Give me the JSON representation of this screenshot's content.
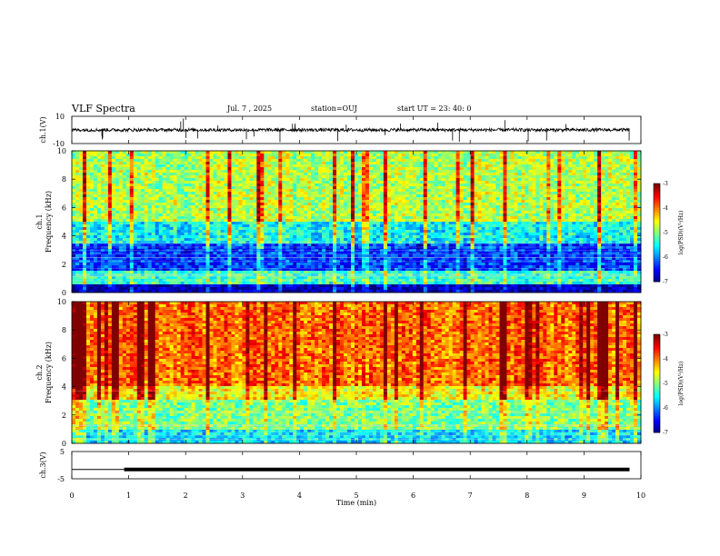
{
  "header": {
    "title": "VLF Spectra",
    "date": "Jul. 7 , 2025",
    "station": "station=OUJ",
    "start": "start UT = 23: 40: 0"
  },
  "chart_data": [
    {
      "type": "line",
      "name": "ch1-waveform",
      "ylabel": "ch.1(V)",
      "ylim": [
        -10,
        10
      ],
      "yticklabels": [
        "10",
        "-10"
      ],
      "xlim": [
        0,
        10
      ],
      "description_values": {
        "baseline_v": 0,
        "typical_amplitude_v": 1.2,
        "spike_amplitude_v": 9
      }
    },
    {
      "type": "heatmap",
      "name": "ch1-spectrogram",
      "ylabel": "ch.1\nFrequency (kHz)",
      "ylim": [
        0,
        10
      ],
      "yticklabels": [
        "0",
        "2",
        "4",
        "6",
        "8",
        "10"
      ],
      "xlim": [
        0,
        10
      ],
      "colorbar": {
        "label": "log(PSD)(V²/Hz)",
        "range": [
          -7,
          -3
        ],
        "ticks": [
          "-3",
          "-4",
          "-5",
          "-6",
          "-7"
        ]
      },
      "dominant_levels_by_band_khz": [
        {
          "band": [
            0,
            0.5
          ],
          "level": -6.8
        },
        {
          "band": [
            0.5,
            1.5
          ],
          "level": -5.3
        },
        {
          "band": [
            1.5,
            3.5
          ],
          "level": -6.3
        },
        {
          "band": [
            3.5,
            5
          ],
          "level": -5.5
        },
        {
          "band": [
            5,
            10
          ],
          "level": -4.8
        }
      ]
    },
    {
      "type": "heatmap",
      "name": "ch2-spectrogram",
      "ylabel": "ch.2\nFrequency (kHz)",
      "ylim": [
        0,
        10
      ],
      "yticklabels": [
        "0",
        "2",
        "4",
        "6",
        "8",
        "10"
      ],
      "xlim": [
        0,
        10
      ],
      "colorbar": {
        "label": "log(PSD)(V²/Hz)",
        "range": [
          -7,
          -3
        ],
        "ticks": [
          "-3",
          "-4",
          "-5",
          "-6",
          "-7"
        ]
      },
      "dominant_levels_by_band_khz": [
        {
          "band": [
            0,
            1
          ],
          "level": -5.6
        },
        {
          "band": [
            1,
            3
          ],
          "level": -5.0
        },
        {
          "band": [
            3,
            4
          ],
          "level": -4.5
        },
        {
          "band": [
            4,
            10
          ],
          "level": -3.9
        }
      ]
    },
    {
      "type": "line",
      "name": "ch3-waveform",
      "ylabel": "ch.3(V)",
      "ylim": [
        -5,
        5
      ],
      "yticklabels": [
        "5",
        "-5"
      ],
      "xlim": [
        0,
        10
      ],
      "xlabel": "Time (min)",
      "xticklabels": [
        "0",
        "1",
        "2",
        "3",
        "4",
        "5",
        "6",
        "7",
        "8",
        "9",
        "10"
      ],
      "segments": [
        {
          "x": [
            0,
            0.92
          ],
          "y": -1.6,
          "weight": "thin"
        },
        {
          "x": [
            0.92,
            9.8
          ],
          "y": -1.6,
          "weight": "thick"
        }
      ]
    }
  ]
}
